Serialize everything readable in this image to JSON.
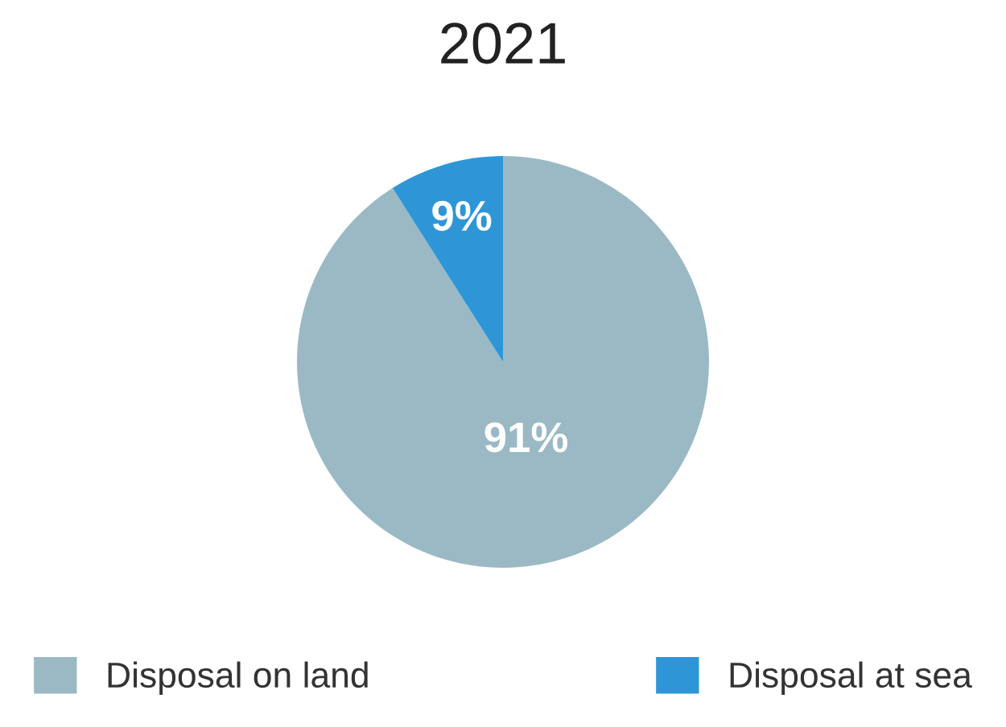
{
  "chart_data": {
    "type": "pie",
    "title": "2021",
    "categories": [
      "Disposal on land",
      "Disposal at sea"
    ],
    "values": [
      91,
      9
    ],
    "colors": [
      "#9ab9c4",
      "#2e96d6"
    ],
    "value_labels": [
      "91%",
      "9%"
    ],
    "legend": "bottom"
  }
}
